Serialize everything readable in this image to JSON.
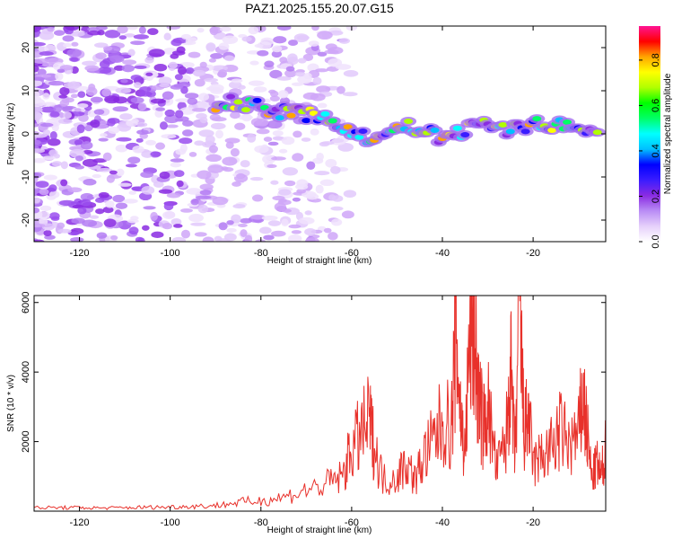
{
  "title": "PAZ1.2025.155.20.07.G15",
  "chart_data": [
    {
      "type": "heatmap",
      "xlabel": "Height of straight line (km)",
      "ylabel": "Frequency (Hz)",
      "xlim": [
        -130,
        -4
      ],
      "ylim": [
        -25,
        25
      ],
      "xticks": [
        -120,
        -100,
        -80,
        -60,
        -40,
        -20
      ],
      "yticks": [
        -20,
        -10,
        0,
        10,
        20
      ],
      "colorbar": {
        "label": "Normalized spectral amplitude",
        "range": [
          0.0,
          0.95
        ],
        "ticks": [
          0.0,
          0.2,
          0.4,
          0.6,
          0.8
        ],
        "colormap": [
          "#ffffff",
          "#e6d0fb",
          "#b98cf5",
          "#8a2be2",
          "#3a1cff",
          "#0000ff",
          "#00bfff",
          "#00ffff",
          "#00ff66",
          "#00ff00",
          "#b0ff00",
          "#ffff00",
          "#ffa500",
          "#ff0000",
          "#ff1493"
        ]
      },
      "signal_track": [
        {
          "x": -90,
          "f": 7
        },
        {
          "x": -85,
          "f": 7.5
        },
        {
          "x": -80,
          "f": 6
        },
        {
          "x": -75,
          "f": 5
        },
        {
          "x": -70,
          "f": 4.5
        },
        {
          "x": -65,
          "f": 3
        },
        {
          "x": -60,
          "f": 1
        },
        {
          "x": -55,
          "f": -2
        },
        {
          "x": -50,
          "f": 2
        },
        {
          "x": -45,
          "f": 1
        },
        {
          "x": -40,
          "f": -1
        },
        {
          "x": -35,
          "f": 1
        },
        {
          "x": -30,
          "f": 2
        },
        {
          "x": -25,
          "f": 1
        },
        {
          "x": -20,
          "f": 2.5
        },
        {
          "x": -15,
          "f": 2
        },
        {
          "x": -10,
          "f": 1
        },
        {
          "x": -5,
          "f": 1
        }
      ]
    },
    {
      "type": "line",
      "xlabel": "Height of straight line (km)",
      "ylabel": "SNR (10 * v/v)",
      "xlim": [
        -130,
        -4
      ],
      "ylim": [
        0,
        6200
      ],
      "xticks": [
        -120,
        -100,
        -80,
        -60,
        -40,
        -20
      ],
      "yticks": [
        2000,
        4000,
        6000
      ],
      "series": [
        {
          "color": "#e8312b",
          "x": [
            -130,
            -125,
            -120,
            -115,
            -110,
            -105,
            -100,
            -95,
            -90,
            -85,
            -80,
            -75,
            -70,
            -65,
            -62,
            -60,
            -58,
            -56,
            -55,
            -53,
            -50,
            -48,
            -46,
            -44,
            -42,
            -40,
            -38,
            -37,
            -36,
            -35,
            -34,
            -33,
            -32,
            -31,
            -30,
            -28,
            -26,
            -25,
            -24,
            -23,
            -22,
            -21,
            -20,
            -18,
            -16,
            -14,
            -12,
            -10,
            -9,
            -8,
            -7,
            -6,
            -5,
            -4
          ],
          "values": [
            100,
            100,
            100,
            90,
            100,
            110,
            120,
            140,
            160,
            250,
            300,
            400,
            600,
            800,
            1000,
            1800,
            2200,
            2600,
            1800,
            900,
            1000,
            1400,
            900,
            1600,
            2000,
            2600,
            2400,
            5200,
            2800,
            1600,
            4900,
            5200,
            3200,
            2400,
            3000,
            1200,
            2000,
            4100,
            1500,
            6100,
            2200,
            2800,
            1300,
            1600,
            1800,
            2300,
            1900,
            2200,
            3300,
            2100,
            900,
            1400,
            1000,
            1800
          ]
        }
      ]
    }
  ]
}
